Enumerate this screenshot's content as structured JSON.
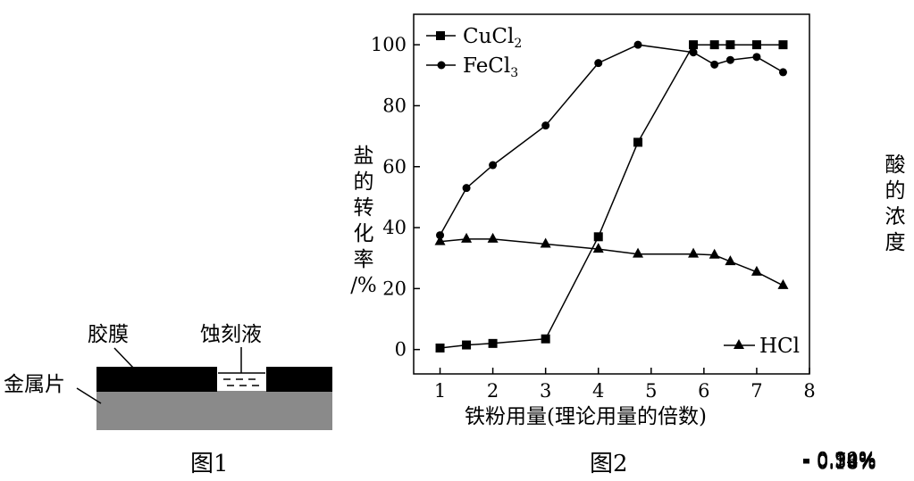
{
  "figure1": {
    "caption": "图1",
    "labels": {
      "film": "胶膜",
      "etchant": "蚀刻液",
      "metal": "金属片"
    },
    "colors": {
      "film": "#000000",
      "metal": "#8a8a8a"
    }
  },
  "figure2": {
    "caption": "图2"
  },
  "chart_data": {
    "type": "line",
    "title": "",
    "xlabel": "铁粉用量(理论用量的倍数)",
    "ylabel": "盐的转化率/%",
    "ylabel_right": "酸的浓度",
    "xlim": [
      0.5,
      8
    ],
    "ylim": [
      -8,
      110
    ],
    "ylim_right": [
      0.18,
      0.9
    ],
    "x_ticks": [
      "1",
      "2",
      "3",
      "4",
      "5",
      "6",
      "7",
      "8"
    ],
    "y_ticks_left": [
      "0",
      "20",
      "40",
      "60",
      "80",
      "100"
    ],
    "y_ticks_right": [
      "0.18%",
      "0.36%",
      "0.54%",
      "0.72%",
      "0.90%"
    ],
    "legend": [
      "CuCl₂",
      "FeCl₃",
      "HCl"
    ],
    "legend_placement": {
      "CuCl2": "top-left",
      "FeCl3": "top-left",
      "HCl": "bottom-right"
    },
    "grid": false,
    "series": [
      {
        "name": "CuCl₂",
        "axis": "left",
        "marker": "square",
        "x": [
          1,
          1.5,
          2,
          3,
          4,
          4.75,
          5.8,
          6.2,
          6.5,
          7,
          7.5
        ],
        "y": [
          0.5,
          1.5,
          2,
          3.5,
          37,
          68,
          100,
          100,
          100,
          100,
          100
        ]
      },
      {
        "name": "FeCl₃",
        "axis": "left",
        "marker": "circle",
        "x": [
          1,
          1.5,
          2,
          3,
          4,
          4.75,
          5.8,
          6.2,
          6.5,
          7,
          7.5
        ],
        "y": [
          37.5,
          53,
          60.5,
          73.5,
          94,
          100,
          97.5,
          93.5,
          95,
          96,
          91
        ]
      },
      {
        "name": "HCl",
        "axis": "right",
        "marker": "triangle",
        "x": [
          1,
          1.5,
          2,
          3,
          4,
          4.75,
          5.8,
          6.2,
          6.5,
          7,
          7.5
        ],
        "y": [
          0.445,
          0.45,
          0.45,
          0.44,
          0.43,
          0.42,
          0.42,
          0.418,
          0.405,
          0.384,
          0.357
        ]
      }
    ]
  }
}
